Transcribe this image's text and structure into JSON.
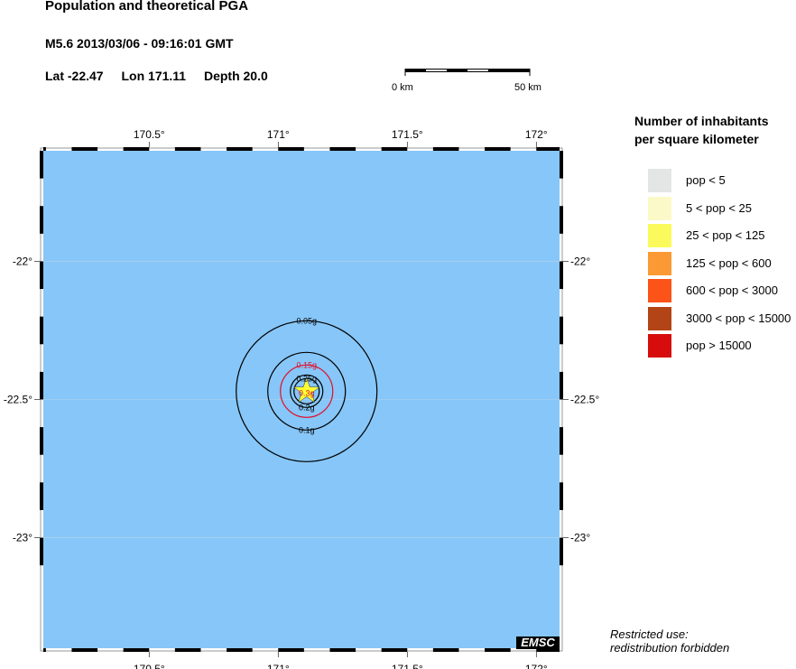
{
  "title": "Population and theoretical PGA",
  "event": "M5.6  2013/03/06 - 09:16:01 GMT",
  "location": {
    "lat": "Lat -22.47",
    "lon": "Lon 171.11",
    "depth": "Depth  20.0"
  },
  "epicenter": {
    "lat": -22.47,
    "lon": 171.11
  },
  "scale_bar": {
    "start": "0 km",
    "end": "50 km"
  },
  "map": {
    "lon_range": [
      170.09,
      172.09
    ],
    "lat_range": [
      -23.4,
      -21.6
    ],
    "water_color": "#87c6f8",
    "lon_ticks": [
      {
        "value": 170.5,
        "label": "170.5°"
      },
      {
        "value": 171,
        "label": "171°"
      },
      {
        "value": 171.5,
        "label": "171.5°"
      },
      {
        "value": 172,
        "label": "172°"
      }
    ],
    "lat_ticks": [
      {
        "value": -22,
        "label": "-22°"
      },
      {
        "value": -22.5,
        "label": "-22.5°"
      },
      {
        "value": -23,
        "label": "-23°"
      }
    ],
    "pga_contours": [
      {
        "label": "0.05g",
        "color": "#000000"
      },
      {
        "label": "0.1g",
        "color": "#000000"
      },
      {
        "label": "0.15g",
        "color": "#e0102a"
      },
      {
        "label": "0.2g",
        "color": "#000000"
      },
      {
        "label": "0.25g",
        "color": "#000000"
      },
      {
        "label": "0.3g",
        "color": "#e0102a"
      }
    ],
    "epicenter_icon": "star-icon",
    "epicenter_color": "#ffff33"
  },
  "legend": {
    "title_line1": "Number of inhabitants",
    "title_line2": "per square kilometer",
    "items": [
      {
        "label": "pop < 5",
        "color": "#e4e6e6"
      },
      {
        "label": "5 < pop < 25",
        "color": "#fbf9c8"
      },
      {
        "label": "25 < pop < 125",
        "color": "#fbfa5c"
      },
      {
        "label": "125 < pop < 600",
        "color": "#fb9a35"
      },
      {
        "label": "600 < pop < 3000",
        "color": "#fb5318"
      },
      {
        "label": "3000 < pop < 15000",
        "color": "#b34415"
      },
      {
        "label": "pop > 15000",
        "color": "#d70c0c"
      }
    ]
  },
  "logo": "EMSC",
  "note": {
    "line1": "Restricted use:",
    "line2": "redistribution forbidden"
  }
}
